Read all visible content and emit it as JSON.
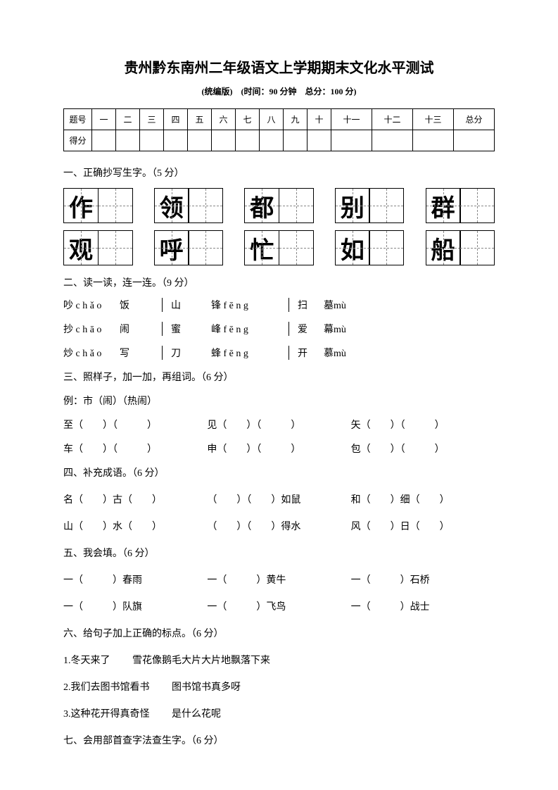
{
  "title": "贵州黔东南州二年级语文上学期期末文化水平测试",
  "subtitle": "(统编版)　(时间：90 分钟　总分：100 分)",
  "scoreTable": {
    "row1": [
      "题号",
      "一",
      "二",
      "三",
      "四",
      "五",
      "六",
      "七",
      "八",
      "九",
      "十",
      "十一",
      "十二",
      "十三",
      "总分"
    ],
    "row2Label": "得分"
  },
  "q1": {
    "title": "一、正确抄写生字。（5 分）",
    "row1": [
      "作",
      "领",
      "都",
      "别",
      "群"
    ],
    "row2": [
      "观",
      "呼",
      "忙",
      "如",
      "船"
    ]
  },
  "q2": {
    "title": "二、读一读，连一连。（9 分）",
    "rows": [
      [
        "吵 c h ǎ o",
        "饭",
        "山",
        "锋 f ē n g",
        "扫",
        "墓mù"
      ],
      [
        "抄 c h ā o",
        "闹",
        "蜜",
        "峰 f ē n g",
        "爱",
        "幕mù"
      ],
      [
        "炒 c h ǎ o",
        "写",
        "刀",
        "蜂 f ē n g",
        "开",
        "慕mù"
      ]
    ]
  },
  "q3": {
    "title": "三、照样子，加一加，再组词。（6 分）",
    "example": "例：市（闹）（热闹）",
    "row1": [
      "至（　　）（　　　）",
      "见（　　）（　　　）",
      "矢（　　）（　　　）"
    ],
    "row2": [
      "车（　　）（　　　）",
      "申（　　）（　　　）",
      "包（　　）（　　　）"
    ]
  },
  "q4": {
    "title": "四、补充成语。（6 分）",
    "row1": [
      "名（　　）古（　　）",
      "（　　）（　　）如鼠",
      "和（　　）细（　　）"
    ],
    "row2": [
      "山（　　）水（　　）",
      "（　　）（　　）得水",
      "风（　　）日（　　）"
    ]
  },
  "q5": {
    "title": "五、我会填。（6 分）",
    "row1": [
      "一（　　　）春雨",
      "一（　　　）黄牛",
      "一（　　　）石桥"
    ],
    "row2": [
      "一（　　　）队旗",
      "一（　　　）飞鸟",
      "一（　　　）战士"
    ]
  },
  "q6": {
    "title": "六、给句子加上正确的标点。（6 分）",
    "line1a": "1.冬天来了",
    "line1b": "雪花像鹅毛大片大片地飘落下来",
    "line2a": "2.我们去图书馆看书",
    "line2b": "图书馆书真多呀",
    "line3a": "3.这种花开得真奇怪",
    "line3b": "是什么花呢"
  },
  "q7": {
    "title": "七、会用部首查字法查生字。（6 分）"
  }
}
